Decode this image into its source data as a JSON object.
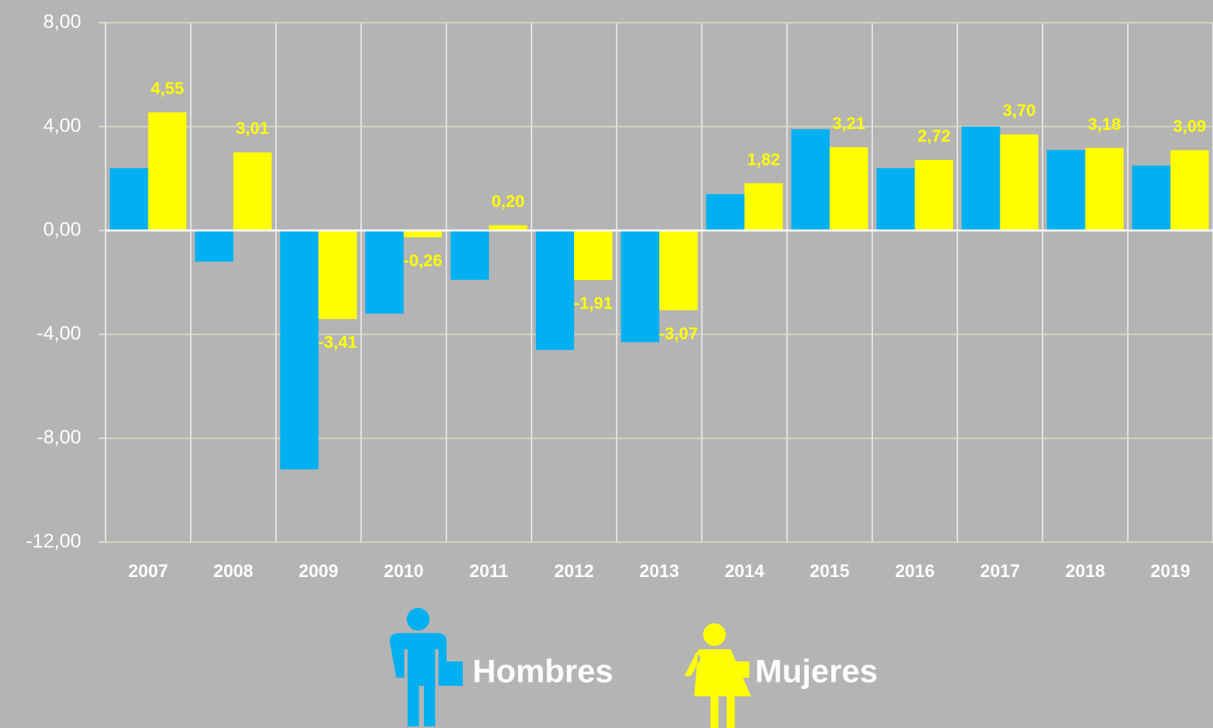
{
  "chart_data": {
    "type": "bar",
    "categories": [
      "2007",
      "2008",
      "2009",
      "2010",
      "2011",
      "2012",
      "2013",
      "2014",
      "2015",
      "2016",
      "2017",
      "2018",
      "2019"
    ],
    "series": [
      {
        "name": "Hombres",
        "color": "#00b0f0",
        "values": [
          2.4,
          -1.2,
          -9.2,
          -3.2,
          -1.9,
          -4.6,
          -4.3,
          1.4,
          3.9,
          2.4,
          4.0,
          3.1,
          2.5
        ]
      },
      {
        "name": "Mujeres",
        "color": "#ffff00",
        "values": [
          4.55,
          3.01,
          -3.41,
          -0.26,
          0.2,
          -1.91,
          -3.07,
          1.82,
          3.21,
          2.72,
          3.7,
          3.18,
          3.09
        ],
        "value_labels": [
          "4,55",
          "3,01",
          "-3,41",
          "-0,26",
          "0,20",
          "-1,91",
          "-3,07",
          "1,82",
          "3,21",
          "2,72",
          "3,70",
          "3,18",
          "3,09"
        ]
      }
    ],
    "ylim": [
      -12,
      8
    ],
    "yticks": [
      {
        "value": -12,
        "label": "-12,00"
      },
      {
        "value": -8,
        "label": "-8,00"
      },
      {
        "value": -4,
        "label": "-4,00"
      },
      {
        "value": 0,
        "label": "0,00"
      },
      {
        "value": 4,
        "label": "4,00"
      },
      {
        "value": 8,
        "label": "8,00"
      }
    ],
    "grid": true
  }
}
